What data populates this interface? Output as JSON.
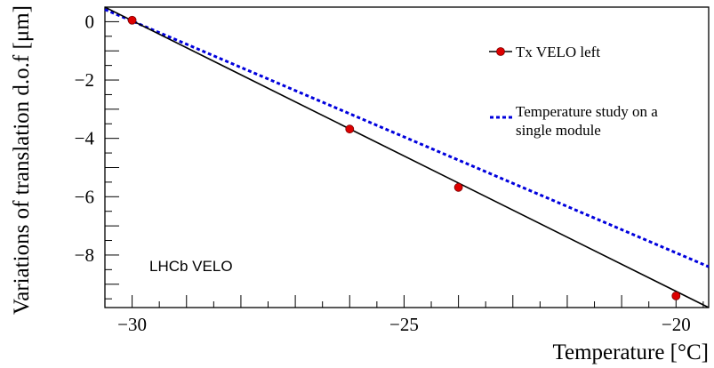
{
  "chart_data": {
    "type": "line",
    "title": "",
    "xlabel": "Temperature [°C]",
    "ylabel": "Variations of translation d.o.f [μm]",
    "xlim": [
      -30.5,
      -19.4
    ],
    "ylim": [
      -9.8,
      0.5
    ],
    "x_ticks": [
      -30,
      -25,
      -20
    ],
    "x_tick_labels": [
      "−30",
      "−25",
      "−20"
    ],
    "y_ticks": [
      0,
      -2,
      -4,
      -6,
      -8
    ],
    "y_tick_labels": [
      "0",
      "−2",
      "−4",
      "−6",
      "−8"
    ],
    "grid": false,
    "legend_position": "top-right",
    "annotation": "LHCb VELO",
    "series": [
      {
        "name": "Tx VELO left",
        "style": "markers-with-fit-line",
        "color": "#000000",
        "marker_color": "#dd0000",
        "points": [
          {
            "x": -30,
            "y": 0.05
          },
          {
            "x": -26,
            "y": -3.68
          },
          {
            "x": -24,
            "y": -5.68
          },
          {
            "x": -20,
            "y": -9.4
          }
        ],
        "fit_line": [
          {
            "x": -30.5,
            "y": 0.5
          },
          {
            "x": -19.4,
            "y": -9.8
          }
        ]
      },
      {
        "name": "Temperature study on a single module",
        "name_lines": [
          "Temperature study on a",
          "single module"
        ],
        "style": "dashed-line",
        "color": "#0000dd",
        "line": [
          {
            "x": -30.5,
            "y": 0.42
          },
          {
            "x": -19.4,
            "y": -8.4
          }
        ]
      }
    ]
  }
}
